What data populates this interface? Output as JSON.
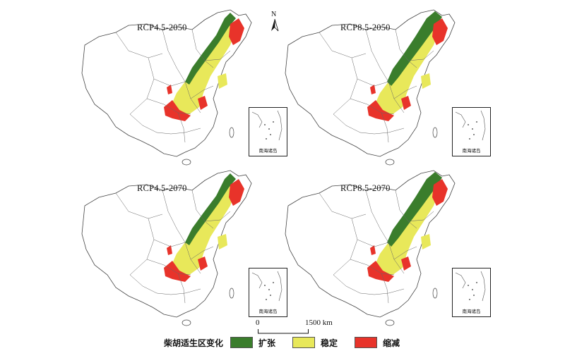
{
  "panels": [
    {
      "title": "RCP4.5-2050",
      "scenario": "RCP4.5",
      "year": "2050"
    },
    {
      "title": "RCP8.5-2050",
      "scenario": "RCP8.5",
      "year": "2050"
    },
    {
      "title": "RCP4.5-2070",
      "scenario": "RCP4.5",
      "year": "2070"
    },
    {
      "title": "RCP8.5-2070",
      "scenario": "RCP8.5",
      "year": "2070"
    }
  ],
  "inset_label": "南海诸岛",
  "north_arrow": "N",
  "scale": {
    "start": "0",
    "end": "1500 km"
  },
  "legend": {
    "title": "柴胡适生区变化",
    "items": [
      {
        "label": "扩张",
        "color": "#3a7d2c"
      },
      {
        "label": "稳定",
        "color": "#e8e85a"
      },
      {
        "label": "缩减",
        "color": "#e8332a"
      }
    ]
  }
}
